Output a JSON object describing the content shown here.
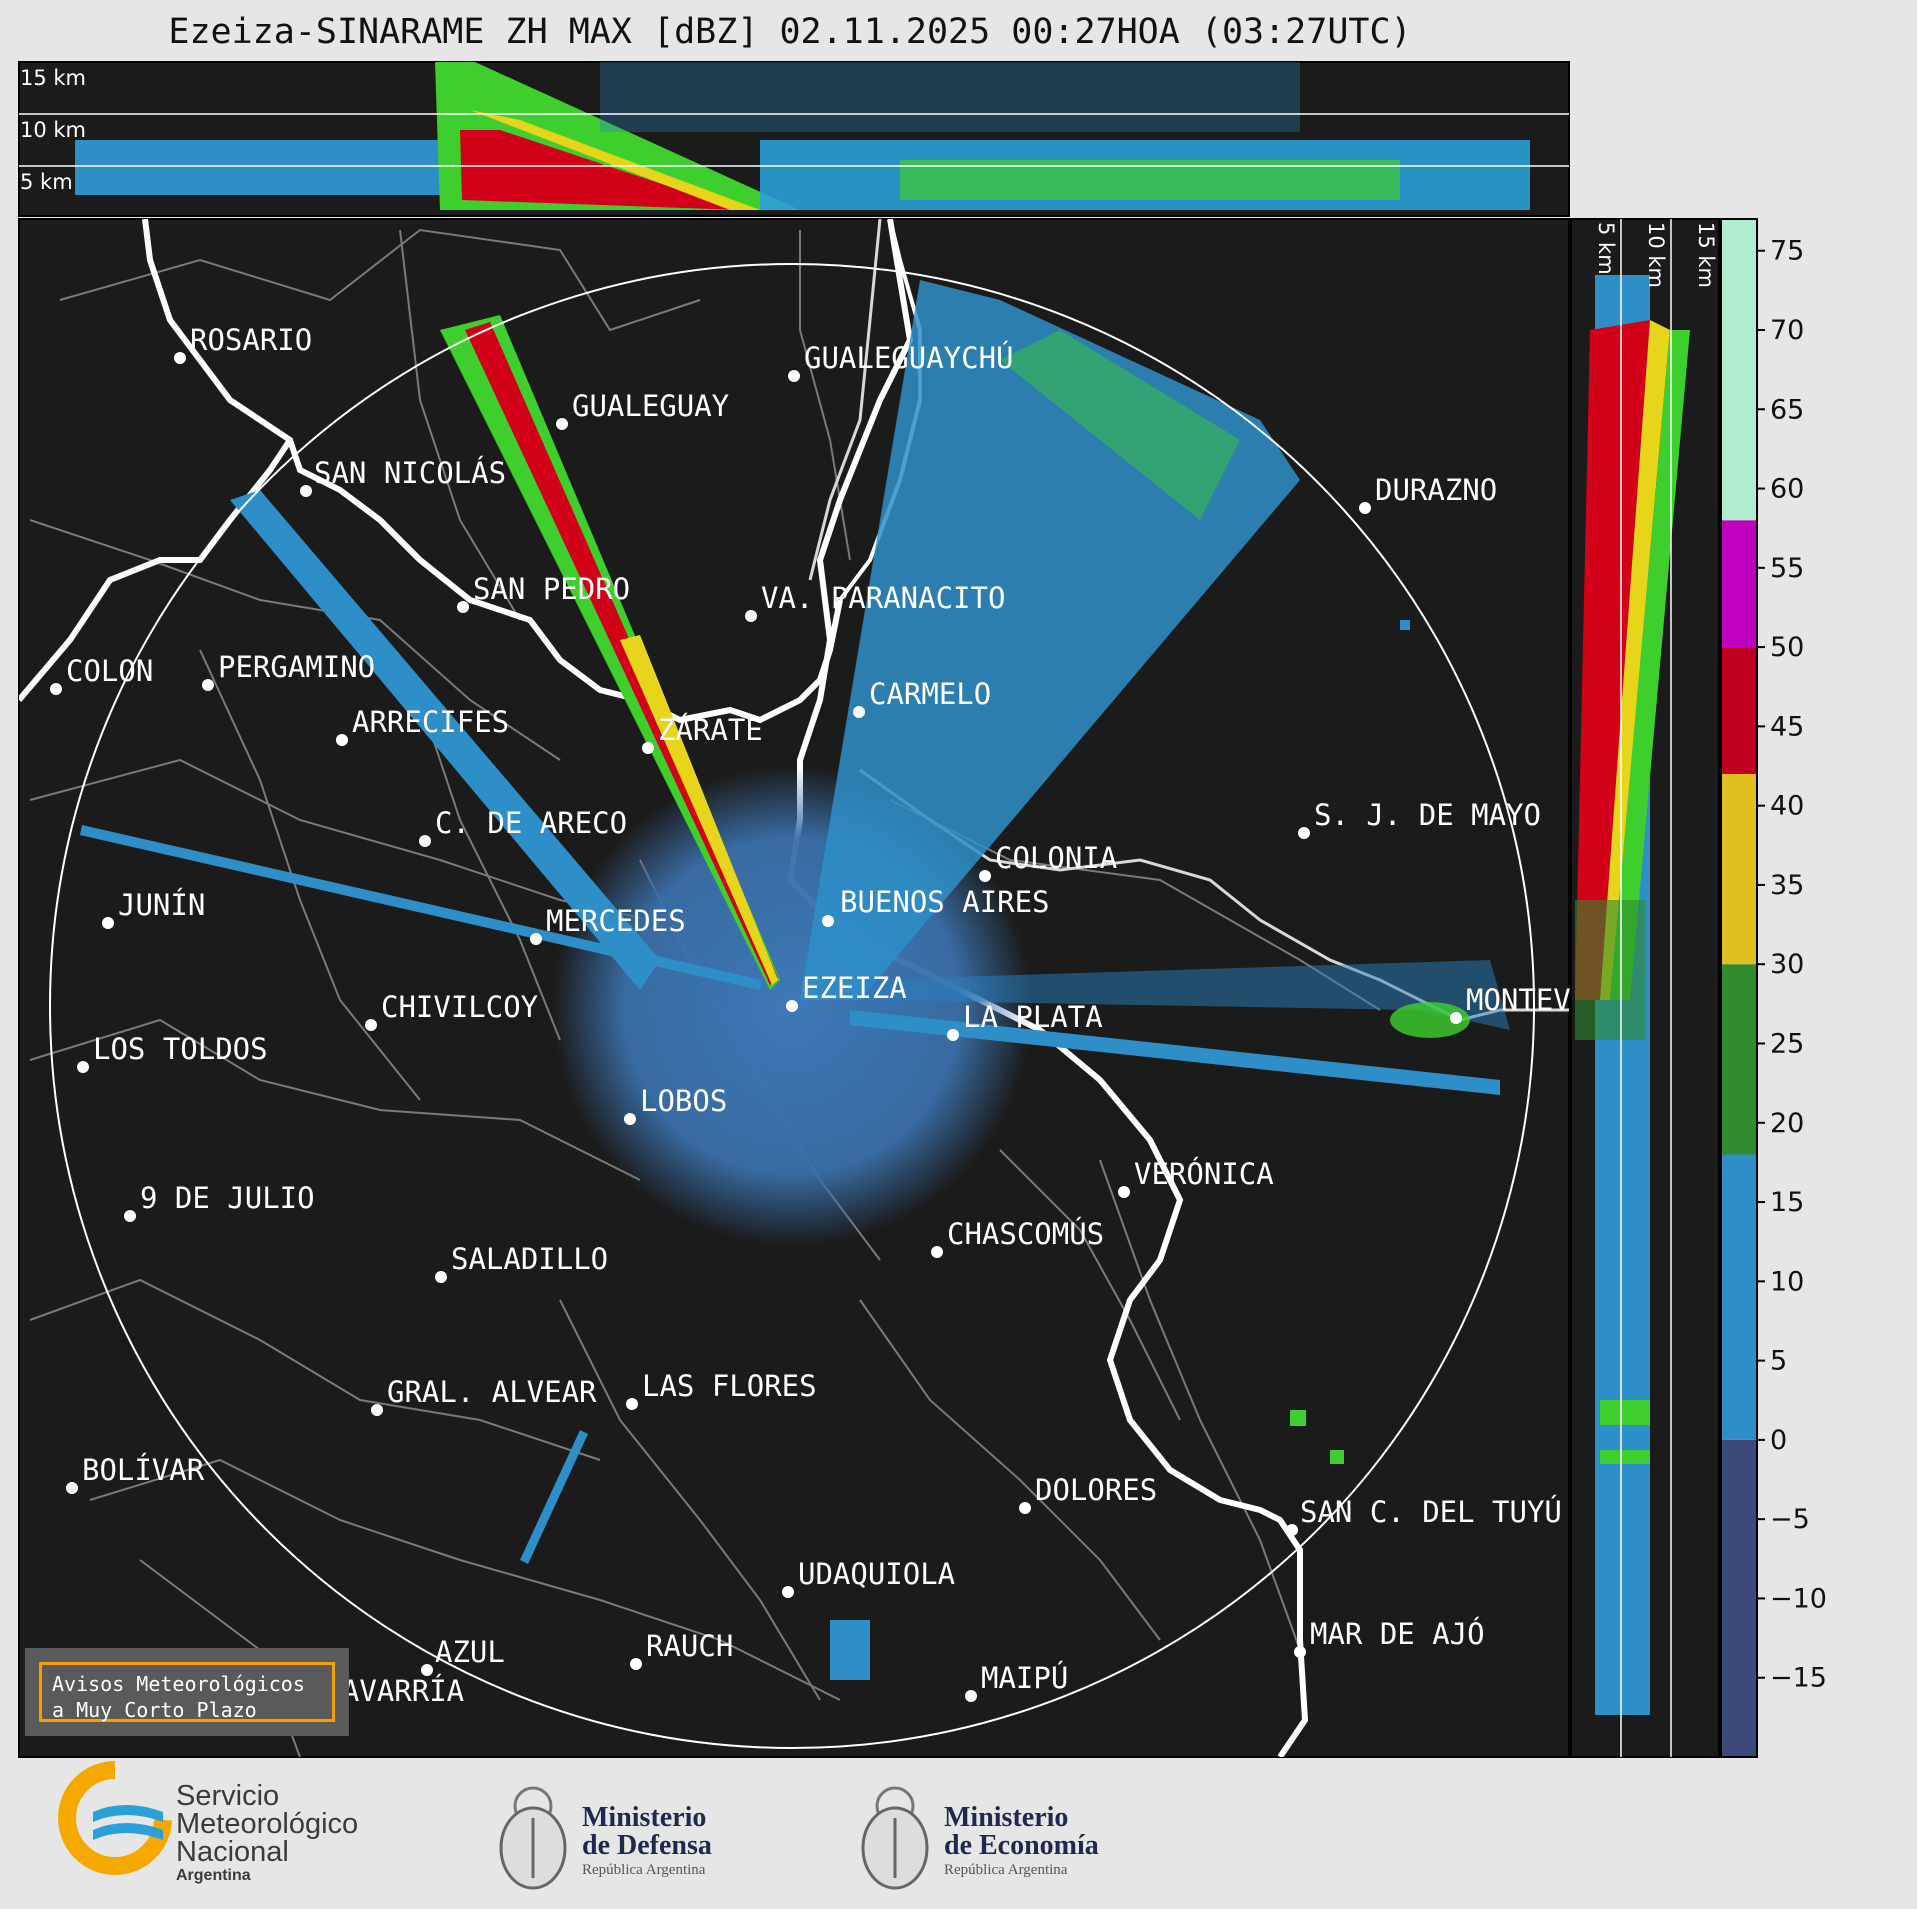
{
  "title": "Ezeiza-SINARAME ZH MAX [dBZ] 02.11.2025 00:27HOA (03:27UTC)",
  "altitude_labels": [
    "15 km",
    "10 km",
    "5 km"
  ],
  "colorbar": {
    "ticks": [
      "75",
      "70",
      "65",
      "60",
      "55",
      "50",
      "45",
      "40",
      "35",
      "30",
      "25",
      "20",
      "15",
      "10",
      "5",
      "0",
      "−5",
      "−10",
      "−15"
    ],
    "stops": [
      {
        "from": -20,
        "to": 0,
        "color": "#3b4a7a"
      },
      {
        "from": 0,
        "to": 18,
        "color": "#2e8fc8"
      },
      {
        "from": 18,
        "to": 30,
        "color": "#2e8b2e"
      },
      {
        "from": 30,
        "to": 42,
        "color": "#e0c020"
      },
      {
        "from": 42,
        "to": 50,
        "color": "#c00020"
      },
      {
        "from": 50,
        "to": 58,
        "color": "#c000c0"
      },
      {
        "from": 58,
        "to": 77,
        "color": "#b0ecd0"
      }
    ]
  },
  "cities": [
    {
      "name": "ROSARIO"
    },
    {
      "name": "GUALEGUAYCHÚ"
    },
    {
      "name": "GUALEGUAY"
    },
    {
      "name": "SAN NICOLÁS"
    },
    {
      "name": "DURAZNO"
    },
    {
      "name": "SAN PEDRO"
    },
    {
      "name": "VA. PARANACITO"
    },
    {
      "name": "COLON"
    },
    {
      "name": "PERGAMINO"
    },
    {
      "name": "CARMELO"
    },
    {
      "name": "ARRECIFES"
    },
    {
      "name": "ZÁRATE"
    },
    {
      "name": "C. DE ARECO"
    },
    {
      "name": "S. J. DE MAYO"
    },
    {
      "name": "COLONIA"
    },
    {
      "name": "JUNÍN"
    },
    {
      "name": "BUENOS AIRES"
    },
    {
      "name": "MERCEDES"
    },
    {
      "name": "EZEIZA"
    },
    {
      "name": "MONTEV"
    },
    {
      "name": "CHIVILCOY"
    },
    {
      "name": "LA PLATA"
    },
    {
      "name": "LOS TOLDOS"
    },
    {
      "name": "LOBOS"
    },
    {
      "name": "VERÓNICA"
    },
    {
      "name": "9 DE JULIO"
    },
    {
      "name": "CHASCOMÚS"
    },
    {
      "name": "SALADILLO"
    },
    {
      "name": "GRAL. ALVEAR"
    },
    {
      "name": "LAS FLORES"
    },
    {
      "name": "BOLÍVAR"
    },
    {
      "name": "DOLORES"
    },
    {
      "name": "SAN C. DEL TUYÚ"
    },
    {
      "name": "UDAQUIOLA"
    },
    {
      "name": "MAR DE AJÓ"
    },
    {
      "name": "AZUL"
    },
    {
      "name": "RAUCH"
    },
    {
      "name": "MAIPÚ"
    },
    {
      "name": "OLAVARRÍA"
    }
  ],
  "badge": {
    "line1": "Avisos Meteorológicos",
    "line2": "a Muy Corto Plazo"
  },
  "footer": {
    "smn": {
      "line1": "Servicio",
      "line2": "Meteorológico",
      "line3": "Nacional",
      "line4": "Argentina"
    },
    "defensa": {
      "line1": "Ministerio",
      "line2": "de Defensa",
      "line3": "República Argentina"
    },
    "economia": {
      "line1": "Ministerio",
      "line2": "de Economía",
      "line3": "República Argentina"
    },
    "colors": {
      "smn_yellow": "#f5a800",
      "smn_blue": "#2aa0d8",
      "ministry_navy": "#1d2a4d"
    }
  },
  "colors": {
    "map_bg": "#1b1b1b",
    "borders": "#7a7a7a",
    "coast": "#ffffff",
    "echo_weak": "#3a7fbf",
    "echo_mid": "#2aa0d8",
    "echo_green": "#3ecf2e",
    "echo_red": "#d20018",
    "echo_yellow": "#e6d51a"
  }
}
